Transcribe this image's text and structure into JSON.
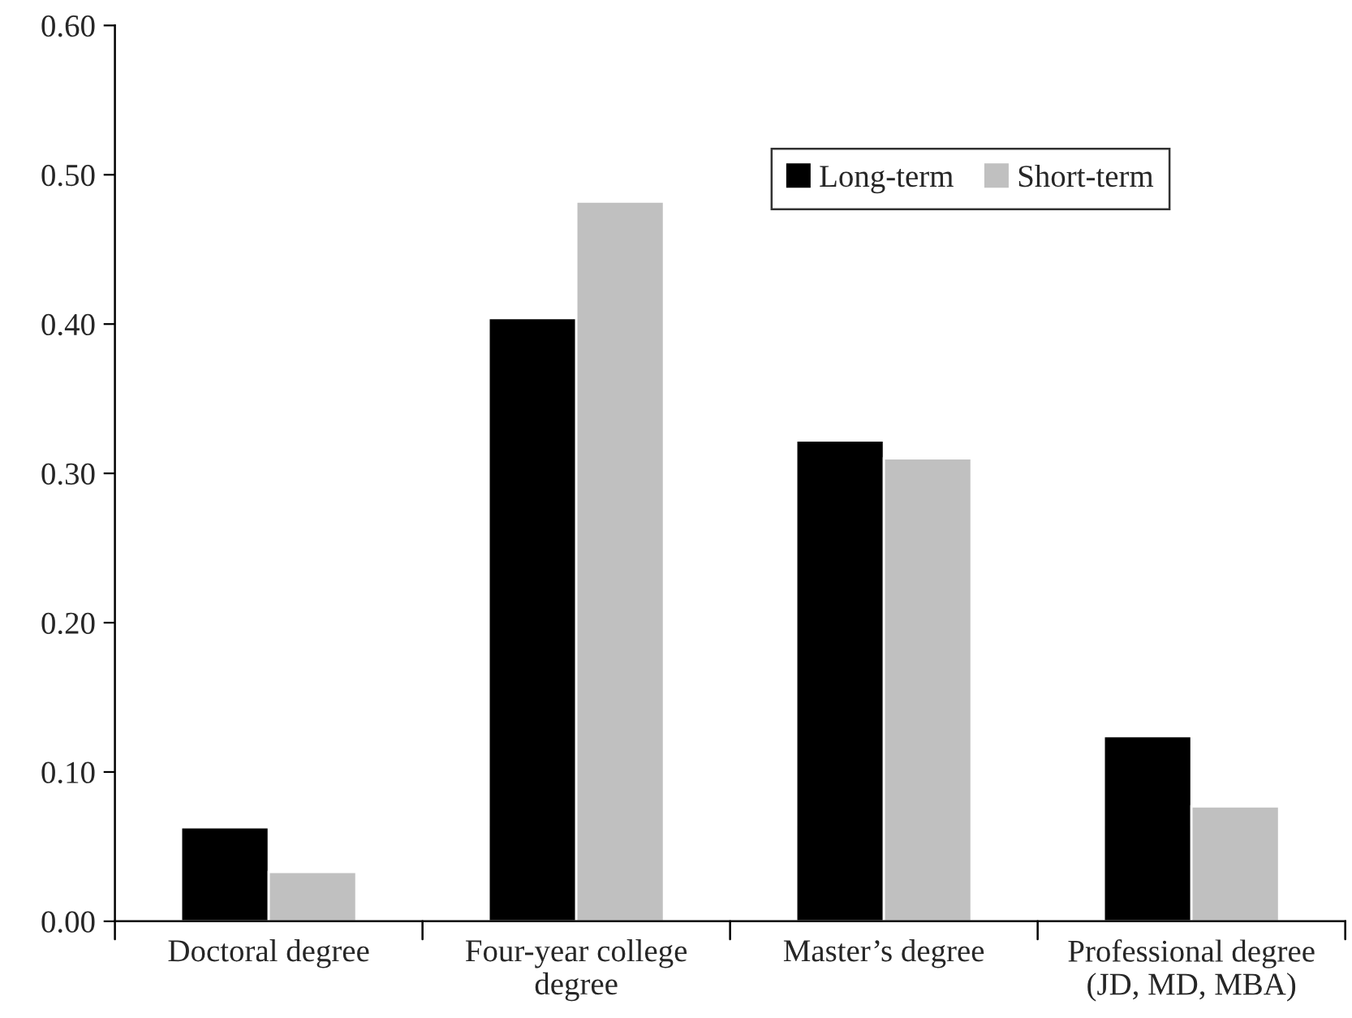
{
  "chart_data": {
    "type": "bar",
    "categories": [
      "Doctoral degree",
      "Four-year college\ndegree",
      "Master’s degree",
      "Professional degree\n(JD, MD, MBA)"
    ],
    "series": [
      {
        "name": "Long-term",
        "color": "#000000",
        "values": [
          0.063,
          0.404,
          0.322,
          0.124
        ]
      },
      {
        "name": "Short-term",
        "color": "#c0c0c0",
        "values": [
          0.033,
          0.482,
          0.31,
          0.077
        ]
      }
    ],
    "ylim": [
      0,
      0.6
    ],
    "yticks": [
      {
        "value": 0,
        "label": "0.00"
      },
      {
        "value": 0.1,
        "label": "0.10"
      },
      {
        "value": 0.2,
        "label": "0.20"
      },
      {
        "value": 0.3,
        "label": "0.30"
      },
      {
        "value": 0.4,
        "label": "0.40"
      },
      {
        "value": 0.5,
        "label": "0.50"
      },
      {
        "value": 0.6,
        "label": "0.60"
      }
    ],
    "grid": false,
    "legend": "top right"
  }
}
